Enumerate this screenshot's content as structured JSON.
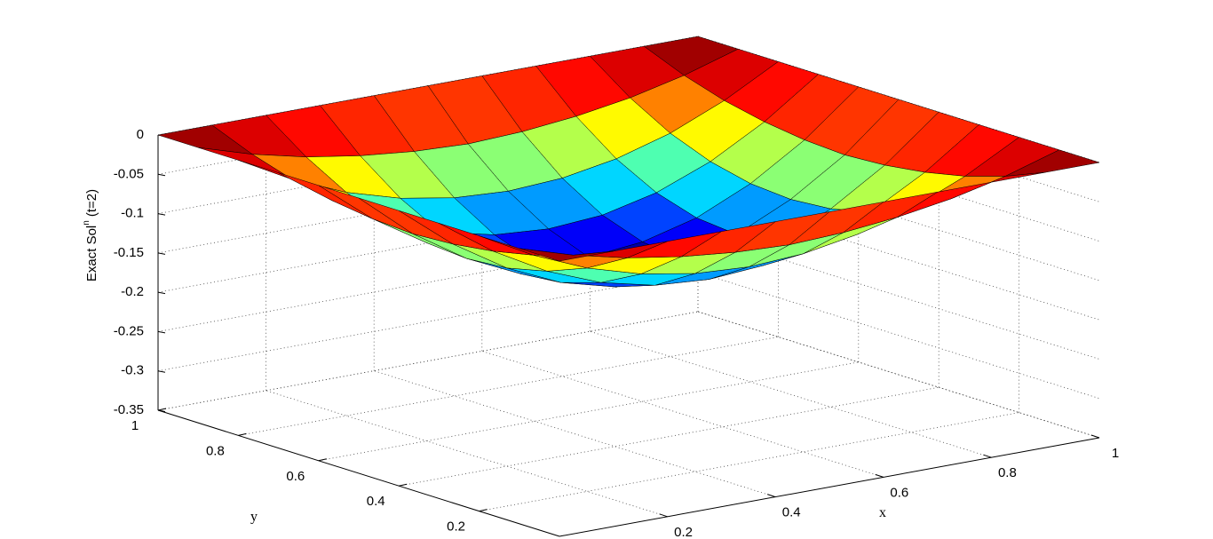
{
  "chart_data": {
    "type": "surface",
    "zlabel": {
      "text": "Exact Sol",
      "superscript": "n",
      "suffix": "(t=2)"
    },
    "xlabel": "x",
    "ylabel": "y",
    "colormap": "jet",
    "grid": true,
    "xlim": [
      0,
      1
    ],
    "xticks": [
      0.2,
      0.4,
      0.6,
      0.8,
      1
    ],
    "ylim": [
      0,
      1
    ],
    "yticks": [
      0.2,
      0.4,
      0.6,
      0.8,
      1
    ],
    "zlim": [
      -0.35,
      0
    ],
    "zticks": [
      -0.35,
      -0.3,
      -0.25,
      -0.2,
      -0.15,
      -0.1,
      -0.05,
      0
    ],
    "x": [
      0,
      0.1,
      0.2,
      0.3,
      0.4,
      0.5,
      0.6,
      0.7,
      0.8,
      0.9,
      1
    ],
    "y": [
      0,
      0.1,
      0.2,
      0.3,
      0.4,
      0.5,
      0.6,
      0.7,
      0.8,
      0.9,
      1
    ],
    "z": [
      [
        0,
        0,
        0,
        0,
        0,
        0,
        0,
        0,
        0,
        0,
        0
      ],
      [
        0,
        -0.021,
        -0.037,
        -0.048,
        -0.055,
        -0.058,
        -0.055,
        -0.048,
        -0.037,
        -0.021,
        0
      ],
      [
        0,
        -0.037,
        -0.066,
        -0.086,
        -0.098,
        -0.102,
        -0.098,
        -0.086,
        -0.066,
        -0.037,
        0
      ],
      [
        0,
        -0.048,
        -0.086,
        -0.113,
        -0.129,
        -0.134,
        -0.129,
        -0.113,
        -0.086,
        -0.048,
        0
      ],
      [
        0,
        -0.055,
        -0.098,
        -0.129,
        -0.147,
        -0.154,
        -0.147,
        -0.129,
        -0.098,
        -0.055,
        0
      ],
      [
        0,
        -0.058,
        -0.102,
        -0.134,
        -0.154,
        -0.16,
        -0.154,
        -0.134,
        -0.102,
        -0.058,
        0
      ],
      [
        0,
        -0.055,
        -0.098,
        -0.129,
        -0.147,
        -0.154,
        -0.147,
        -0.129,
        -0.098,
        -0.055,
        0
      ],
      [
        0,
        -0.048,
        -0.086,
        -0.113,
        -0.129,
        -0.134,
        -0.129,
        -0.113,
        -0.086,
        -0.048,
        0
      ],
      [
        0,
        -0.037,
        -0.066,
        -0.086,
        -0.098,
        -0.102,
        -0.098,
        -0.086,
        -0.066,
        -0.037,
        0
      ],
      [
        0,
        -0.021,
        -0.037,
        -0.048,
        -0.055,
        -0.058,
        -0.055,
        -0.048,
        -0.037,
        -0.021,
        0
      ],
      [
        0,
        0,
        0,
        0,
        0,
        0,
        0,
        0,
        0,
        0,
        0
      ]
    ]
  }
}
